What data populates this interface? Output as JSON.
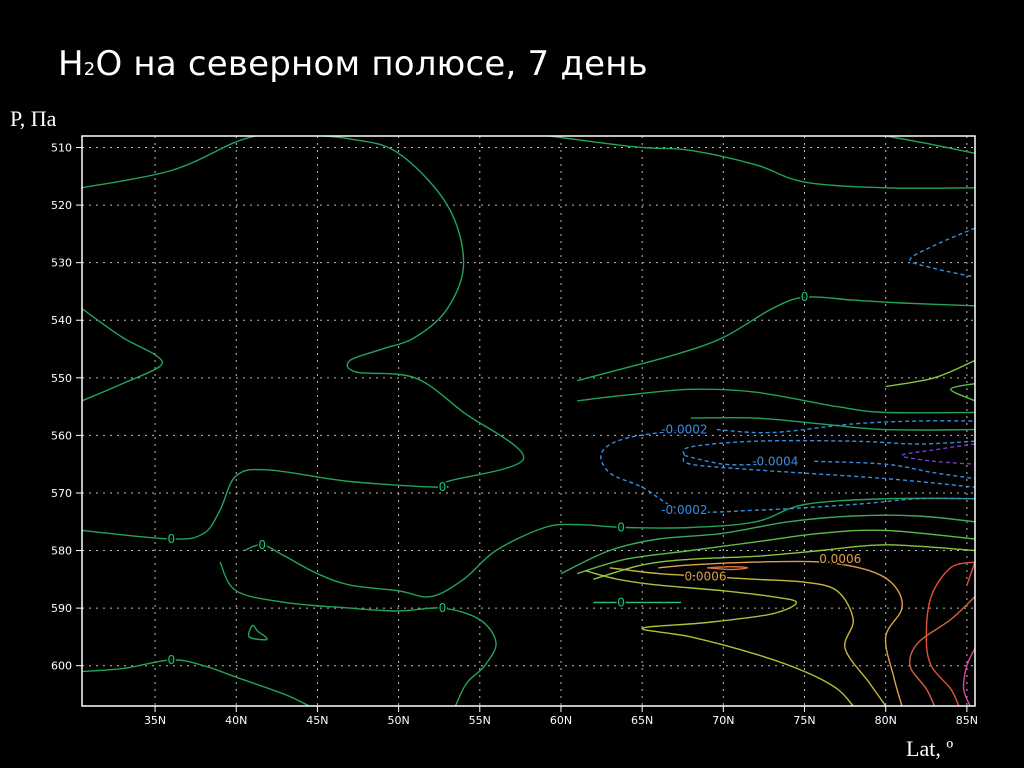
{
  "title": {
    "main_pre": "H",
    "main_sub": "2",
    "main_post": "O на северном полюсе, 7 день"
  },
  "chart_data": {
    "type": "contour",
    "title": "H2O на северном полюсе, 7 день",
    "xlabel": "Lat, º",
    "ylabel": "P, Па",
    "x_ticks": [
      "35N",
      "40N",
      "45N",
      "50N",
      "55N",
      "60N",
      "65N",
      "70N",
      "75N",
      "80N",
      "85N"
    ],
    "x_tick_values": [
      35,
      40,
      45,
      50,
      55,
      60,
      65,
      70,
      75,
      80,
      85
    ],
    "y_ticks": [
      "510",
      "520",
      "530",
      "540",
      "550",
      "560",
      "570",
      "580",
      "590",
      "600"
    ],
    "y_tick_values": [
      510,
      520,
      530,
      540,
      550,
      560,
      570,
      580,
      590,
      600
    ],
    "xlim": [
      30.5,
      85.5
    ],
    "ylim": [
      508,
      607
    ],
    "y_inverted": true,
    "grid": true,
    "contour_labels": [
      {
        "text": "0",
        "x": 75,
        "y": 536,
        "color": "#22c47a"
      },
      {
        "text": "0",
        "x": 52.7,
        "y": 569,
        "color": "#22c47a"
      },
      {
        "text": "0",
        "x": 36,
        "y": 578,
        "color": "#22c47a"
      },
      {
        "text": "0",
        "x": 41.6,
        "y": 579,
        "color": "#22c47a"
      },
      {
        "text": "0",
        "x": 63.7,
        "y": 576,
        "color": "#22c47a"
      },
      {
        "text": "0",
        "x": 52.7,
        "y": 590,
        "color": "#22c47a"
      },
      {
        "text": "0",
        "x": 63.7,
        "y": 589,
        "color": "#22c47a"
      },
      {
        "text": "0",
        "x": 36,
        "y": 599,
        "color": "#22c47a"
      },
      {
        "text": "-0.0002",
        "x": 67.6,
        "y": 559,
        "color": "#3a8cdf"
      },
      {
        "text": "-0.0004",
        "x": 73.2,
        "y": 564.5,
        "color": "#3a8cdf"
      },
      {
        "text": "-0.0002",
        "x": 67.6,
        "y": 573,
        "color": "#3a8cdf"
      },
      {
        "text": "0.0006",
        "x": 77.2,
        "y": 581.5,
        "color": "#d9a24a"
      },
      {
        "text": "0.0006",
        "x": 68.9,
        "y": 584.5,
        "color": "#d9a24a"
      }
    ],
    "contours": [
      {
        "color": "#22a35a",
        "points": [
          [
            30.5,
            517
          ],
          [
            36,
            514
          ],
          [
            40,
            509
          ],
          [
            42,
            507.5
          ]
        ]
      },
      {
        "color": "#22a35a",
        "points": [
          [
            43,
            507.5
          ],
          [
            47,
            508.5
          ],
          [
            50,
            511
          ],
          [
            53,
            520
          ],
          [
            54,
            530
          ],
          [
            53,
            538
          ],
          [
            51,
            543
          ],
          [
            49,
            545
          ],
          [
            47,
            547
          ],
          [
            47.4,
            549
          ],
          [
            51,
            550
          ],
          [
            54,
            556
          ],
          [
            57.7,
            564
          ],
          [
            53,
            568
          ],
          [
            52.7,
            569
          ],
          [
            47,
            568
          ],
          [
            42,
            566
          ],
          [
            40,
            567
          ],
          [
            39,
            573
          ],
          [
            38,
            577
          ],
          [
            36,
            578
          ],
          [
            30.5,
            576.5
          ]
        ]
      },
      {
        "color": "#22a35a",
        "points": [
          [
            30.5,
            538
          ],
          [
            33,
            543
          ],
          [
            35,
            546
          ],
          [
            35.3,
            548
          ],
          [
            33,
            551
          ],
          [
            30.5,
            554
          ]
        ]
      },
      {
        "color": "#22a35a",
        "points": [
          [
            58,
            507.5
          ],
          [
            62,
            509
          ],
          [
            65,
            510
          ],
          [
            68,
            510.5
          ],
          [
            72,
            513
          ],
          [
            75,
            516
          ],
          [
            80,
            517
          ],
          [
            85.5,
            517
          ]
        ]
      },
      {
        "color": "#22a35a",
        "points": [
          [
            85.5,
            511
          ],
          [
            82,
            509
          ],
          [
            79,
            507.5
          ]
        ]
      },
      {
        "color": "#22a35a",
        "points": [
          [
            61,
            550.5
          ],
          [
            63,
            549
          ],
          [
            67,
            546
          ],
          [
            70,
            543
          ],
          [
            73,
            538
          ],
          [
            75,
            536
          ],
          [
            78,
            536.5
          ],
          [
            81,
            537
          ],
          [
            85.5,
            537.5
          ]
        ]
      },
      {
        "color": "#22a35a",
        "points": [
          [
            40.5,
            580
          ],
          [
            41.6,
            579
          ],
          [
            43,
            581
          ],
          [
            45,
            584
          ],
          [
            47,
            586
          ],
          [
            50,
            587
          ],
          [
            52,
            588
          ],
          [
            54,
            585
          ],
          [
            56,
            580
          ],
          [
            59,
            576
          ],
          [
            61,
            575.5
          ],
          [
            64,
            576
          ],
          [
            68,
            576
          ],
          [
            72,
            575
          ],
          [
            75,
            572
          ],
          [
            80,
            571
          ],
          [
            85.5,
            571
          ]
        ]
      },
      {
        "color": "#22a35a",
        "points": [
          [
            39,
            582
          ],
          [
            40,
            587
          ],
          [
            43,
            589
          ],
          [
            47,
            590
          ],
          [
            50,
            590.5
          ],
          [
            52.7,
            590
          ],
          [
            55,
            592
          ],
          [
            56,
            596
          ],
          [
            55.3,
            600
          ],
          [
            54.2,
            603
          ],
          [
            53.5,
            607
          ]
        ]
      },
      {
        "color": "#22a35a",
        "points": [
          [
            30.5,
            601
          ],
          [
            33,
            600.5
          ],
          [
            36,
            599
          ],
          [
            38,
            600
          ],
          [
            40,
            602
          ],
          [
            43,
            605
          ],
          [
            44.5,
            607
          ]
        ]
      },
      {
        "color": "#22a35a",
        "points": [
          [
            41.3,
            594
          ],
          [
            41.8,
            595
          ],
          [
            41.8,
            595.5
          ],
          [
            40.8,
            595
          ],
          [
            41,
            593
          ],
          [
            41.3,
            594
          ]
        ]
      },
      {
        "color": "#22c47a",
        "points": [
          [
            62,
            589
          ],
          [
            63.7,
            589
          ],
          [
            65,
            589
          ],
          [
            67.4,
            589
          ]
        ]
      },
      {
        "color": "#3aa860",
        "points": [
          [
            60,
            584
          ],
          [
            63,
            580
          ],
          [
            66,
            578
          ],
          [
            70,
            577
          ],
          [
            74,
            575
          ],
          [
            78,
            574
          ],
          [
            82,
            574
          ],
          [
            85.5,
            575
          ]
        ]
      },
      {
        "color": "#5dbb4a",
        "points": [
          [
            61,
            584
          ],
          [
            64,
            581.5
          ],
          [
            68,
            580
          ],
          [
            72,
            578.5
          ],
          [
            76,
            577
          ],
          [
            80,
            576.5
          ],
          [
            85.5,
            578
          ]
        ]
      },
      {
        "color": "#8cc43e",
        "points": [
          [
            62,
            585
          ],
          [
            65,
            582.5
          ],
          [
            68,
            581.5
          ],
          [
            72,
            581
          ],
          [
            76,
            580
          ],
          [
            80,
            579
          ],
          [
            85.5,
            580
          ]
        ]
      },
      {
        "color": "#a8c23a",
        "points": [
          [
            61.5,
            583.5
          ],
          [
            63.5,
            585
          ],
          [
            66,
            586
          ],
          [
            70,
            587
          ],
          [
            73,
            588
          ],
          [
            74.5,
            589
          ],
          [
            73,
            591
          ],
          [
            69,
            592.5
          ],
          [
            65,
            593.5
          ],
          [
            68,
            595
          ],
          [
            72,
            598
          ],
          [
            75,
            601
          ],
          [
            77,
            604
          ],
          [
            78,
            607
          ]
        ]
      },
      {
        "color": "#c7b83a",
        "points": [
          [
            63,
            583
          ],
          [
            66,
            584
          ],
          [
            69,
            584.5
          ],
          [
            72,
            585
          ],
          [
            75,
            585.5
          ],
          [
            77,
            587
          ],
          [
            78,
            592
          ],
          [
            77.5,
            597
          ],
          [
            79,
            603
          ],
          [
            80,
            607
          ]
        ]
      },
      {
        "color": "#d9a24a",
        "points": [
          [
            66,
            583
          ],
          [
            68,
            582.5
          ],
          [
            72,
            582
          ],
          [
            76,
            582
          ],
          [
            79,
            583.5
          ],
          [
            80.5,
            586
          ],
          [
            81,
            590
          ],
          [
            80,
            595
          ],
          [
            80.5,
            602
          ],
          [
            81,
            607
          ]
        ]
      },
      {
        "color": "#e0703a",
        "points": [
          [
            69,
            583
          ],
          [
            70.5,
            582.8
          ],
          [
            71.5,
            583
          ],
          [
            70.5,
            583.3
          ],
          [
            69,
            583
          ]
        ]
      },
      {
        "color": "#d4603a",
        "points": [
          [
            85.5,
            588
          ],
          [
            84,
            592
          ],
          [
            82,
            596
          ],
          [
            81.5,
            600
          ],
          [
            82.5,
            604
          ],
          [
            83,
            607
          ]
        ]
      },
      {
        "color": "#e0503a",
        "points": [
          [
            85.5,
            582
          ],
          [
            84,
            583
          ],
          [
            82.8,
            588
          ],
          [
            82.5,
            595
          ],
          [
            82.8,
            600
          ],
          [
            84,
            604
          ],
          [
            84.5,
            607
          ]
        ]
      },
      {
        "color": "#e8483a",
        "points": [
          [
            85.5,
            582
          ],
          [
            85,
            586
          ]
        ]
      },
      {
        "color": "#e040a0",
        "points": [
          [
            85.5,
            597
          ],
          [
            85,
            600
          ],
          [
            84.8,
            604
          ],
          [
            85.2,
            607
          ]
        ]
      },
      {
        "color": "#88c43e",
        "points": [
          [
            85.5,
            547
          ],
          [
            83,
            550
          ],
          [
            80,
            551.5
          ]
        ]
      },
      {
        "color": "#5dbb4a",
        "points": [
          [
            85.5,
            551
          ],
          [
            84,
            552
          ],
          [
            85.5,
            554
          ]
        ]
      },
      {
        "color": "#22a35a",
        "points": [
          [
            61,
            554
          ],
          [
            64,
            553
          ],
          [
            68,
            552
          ],
          [
            72,
            552.5
          ],
          [
            77,
            555
          ],
          [
            80,
            556
          ],
          [
            85.5,
            556
          ]
        ]
      },
      {
        "color": "#22a35a",
        "points": [
          [
            85.5,
            559
          ],
          [
            80,
            559
          ],
          [
            76,
            558
          ],
          [
            72,
            557
          ],
          [
            68,
            557
          ]
        ]
      },
      {
        "color": "#3a8cdf",
        "dashed": true,
        "points": [
          [
            67.6,
            559
          ],
          [
            64,
            560.5
          ],
          [
            62.5,
            563
          ],
          [
            63,
            566.5
          ],
          [
            65,
            569
          ],
          [
            67.6,
            573
          ],
          [
            72,
            573
          ],
          [
            78,
            572
          ],
          [
            82,
            571
          ],
          [
            85.5,
            571
          ]
        ]
      },
      {
        "color": "#3a8cdf",
        "dashed": true,
        "points": [
          [
            69.6,
            559
          ],
          [
            73,
            559.5
          ],
          [
            78,
            558
          ],
          [
            82,
            557.5
          ],
          [
            85.5,
            557.5
          ]
        ]
      },
      {
        "color": "#3a8cdf",
        "dashed": true,
        "points": [
          [
            67.6,
            563.5
          ],
          [
            70,
            565
          ],
          [
            72.6,
            565
          ]
        ]
      },
      {
        "color": "#3a8cdf",
        "dashed": true,
        "points": [
          [
            75.6,
            564.5
          ],
          [
            80,
            565
          ],
          [
            83,
            566.5
          ],
          [
            85.5,
            567.5
          ]
        ]
      },
      {
        "color": "#3a8cdf",
        "dashed": true,
        "points": [
          [
            85.5,
            561
          ],
          [
            82,
            561.5
          ],
          [
            78,
            561
          ],
          [
            72,
            561
          ],
          [
            68,
            562
          ],
          [
            67.6,
            563.5
          ],
          [
            68,
            565
          ],
          [
            72,
            566
          ],
          [
            80,
            567.5
          ],
          [
            85.5,
            569
          ]
        ]
      },
      {
        "color": "#3a8cdf",
        "dashed": true,
        "points": [
          [
            85.5,
            524
          ],
          [
            83,
            527
          ],
          [
            81.5,
            529.5
          ],
          [
            83,
            531
          ],
          [
            85.5,
            532.5
          ]
        ]
      },
      {
        "color": "#7a3ad4",
        "dashed": true,
        "points": [
          [
            85.5,
            561.5
          ],
          [
            83,
            562.5
          ],
          [
            81,
            563.5
          ],
          [
            83,
            564.5
          ],
          [
            85.5,
            565
          ]
        ]
      }
    ]
  }
}
